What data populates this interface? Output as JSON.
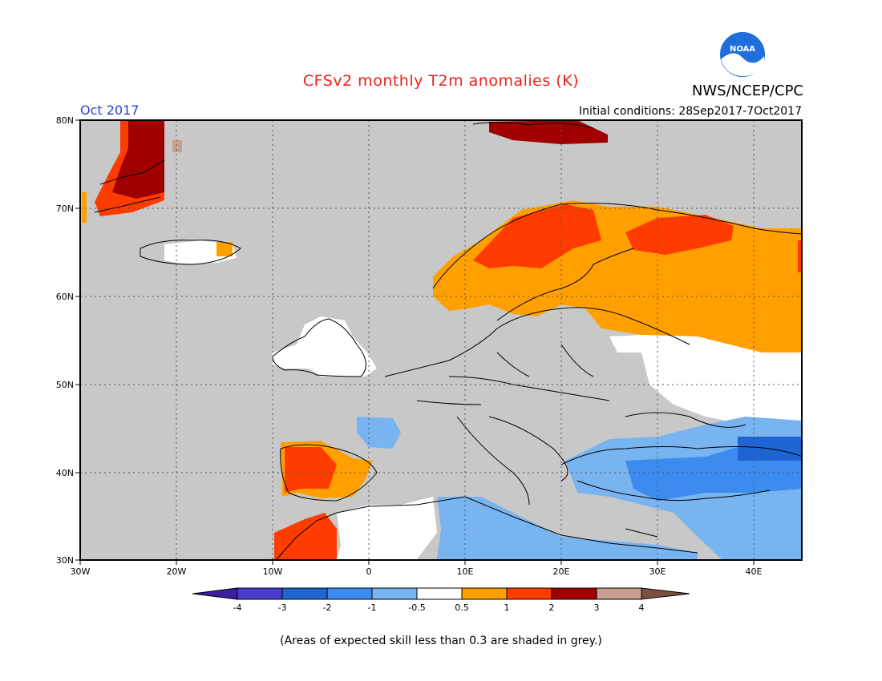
{
  "header": {
    "title": "CFSv2 monthly T2m anomalies (K)",
    "agency": "NWS/NCEP/CPC",
    "month": "Oct 2017",
    "initial_conditions": "Initial conditions: 28Sep2017-7Oct2017",
    "logo_text": "NOAA"
  },
  "map": {
    "region": {
      "lon_range": [
        -30,
        45
      ],
      "lat_range": [
        30,
        80
      ]
    },
    "lat_labels": [
      "80N",
      "70N",
      "60N",
      "50N",
      "40N",
      "30N"
    ],
    "lon_labels": [
      "30W",
      "20W",
      "10W",
      "0",
      "10E",
      "20E",
      "30E",
      "40E"
    ],
    "background_color": "#c8c8c8",
    "grid": "dotted"
  },
  "colorbar": {
    "tick_labels": [
      "-4",
      "-3",
      "-2",
      "-1",
      "-0.5",
      "0.5",
      "1",
      "2",
      "3",
      "4"
    ],
    "colors": [
      "#3c1ea0",
      "#4a3ccc",
      "#1e64d2",
      "#3c8cf0",
      "#78b4f0",
      "#ffffff",
      "#ffa000",
      "#ff3c00",
      "#a00000",
      "#c8a090",
      "#7c5040"
    ]
  },
  "footnote": "(Areas of expected skill less than 0.3 are shaded in grey.)"
}
